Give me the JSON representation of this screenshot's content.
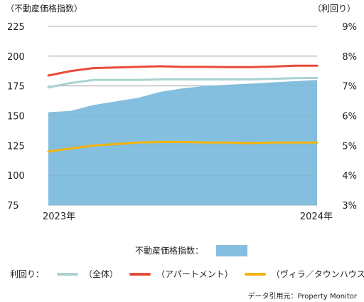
{
  "chart_data": {
    "type": "line",
    "left_axis_title": "（不動産価格指数）",
    "right_axis_title": "（利回り）",
    "left_ticks": [
      "225",
      "200",
      "175",
      "150",
      "125",
      "100",
      "75"
    ],
    "right_ticks": [
      "9%",
      "8%",
      "7%",
      "6%",
      "5%",
      "4%",
      "3%"
    ],
    "ylim_left": [
      75,
      225
    ],
    "ylim_right": [
      3,
      9
    ],
    "x_start_label": "2023年",
    "x_end_label": "2024年",
    "x": [
      0,
      1,
      2,
      3,
      4,
      5,
      6,
      7,
      8,
      9,
      10,
      11,
      12
    ],
    "price_index": {
      "name": "不動産価格指数：",
      "color": "#84bfdf",
      "values": [
        153,
        154,
        159,
        162,
        165,
        170,
        173,
        175,
        176,
        177,
        178,
        179,
        180
      ]
    },
    "yield_label": "利回り：",
    "yield_series": [
      {
        "name": "（全体）",
        "color": "#a9d3cf",
        "values": [
          6.95,
          7.1,
          7.2,
          7.2,
          7.2,
          7.22,
          7.22,
          7.22,
          7.22,
          7.22,
          7.24,
          7.26,
          7.27
        ]
      },
      {
        "name": "（アパートメント）",
        "color": "#e84b3c",
        "values": [
          7.35,
          7.5,
          7.6,
          7.62,
          7.64,
          7.66,
          7.64,
          7.64,
          7.63,
          7.63,
          7.65,
          7.68,
          7.68
        ]
      },
      {
        "name": "（ヴィラ／タウンハウス）",
        "color": "#f5b30b",
        "values": [
          4.8,
          4.9,
          5.0,
          5.05,
          5.1,
          5.12,
          5.12,
          5.1,
          5.1,
          5.08,
          5.1,
          5.1,
          5.1
        ]
      }
    ]
  },
  "source": "データ引用元：Property Monitor"
}
